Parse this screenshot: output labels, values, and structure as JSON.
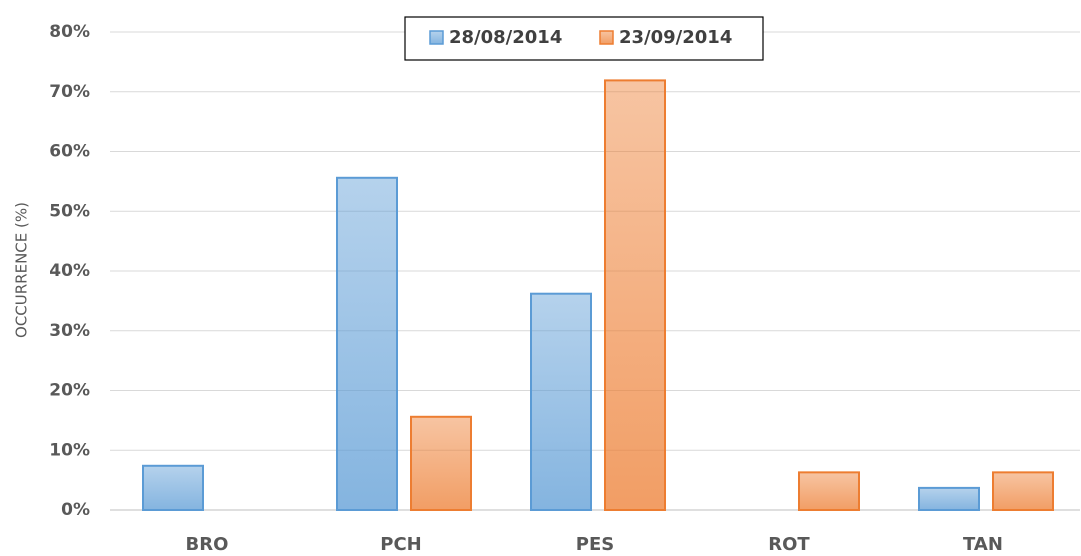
{
  "chart_data": {
    "type": "bar",
    "y_label": "OCCURRENCE (%)",
    "categories": [
      "BRO",
      "PCH",
      "PES",
      "ROT",
      "TAN"
    ],
    "series": [
      {
        "name": "28/08/2014",
        "color": "#5b9bd5",
        "values": [
          7.4,
          55.6,
          36.2,
          0,
          3.7
        ]
      },
      {
        "name": "23/09/2014",
        "color": "#ed7d31",
        "values": [
          0,
          15.6,
          71.9,
          6.3,
          6.3
        ]
      }
    ],
    "ylim": [
      0,
      80
    ],
    "yticks": [
      {
        "value": 0,
        "label": "0%"
      },
      {
        "value": 10,
        "label": "10%"
      },
      {
        "value": 20,
        "label": "20%"
      },
      {
        "value": 30,
        "label": "30%"
      },
      {
        "value": 40,
        "label": "40%"
      },
      {
        "value": 50,
        "label": "50%"
      },
      {
        "value": 60,
        "label": "60%"
      },
      {
        "value": 70,
        "label": "70%"
      },
      {
        "value": 80,
        "label": "80%"
      }
    ],
    "grid": true,
    "legend": "top"
  }
}
